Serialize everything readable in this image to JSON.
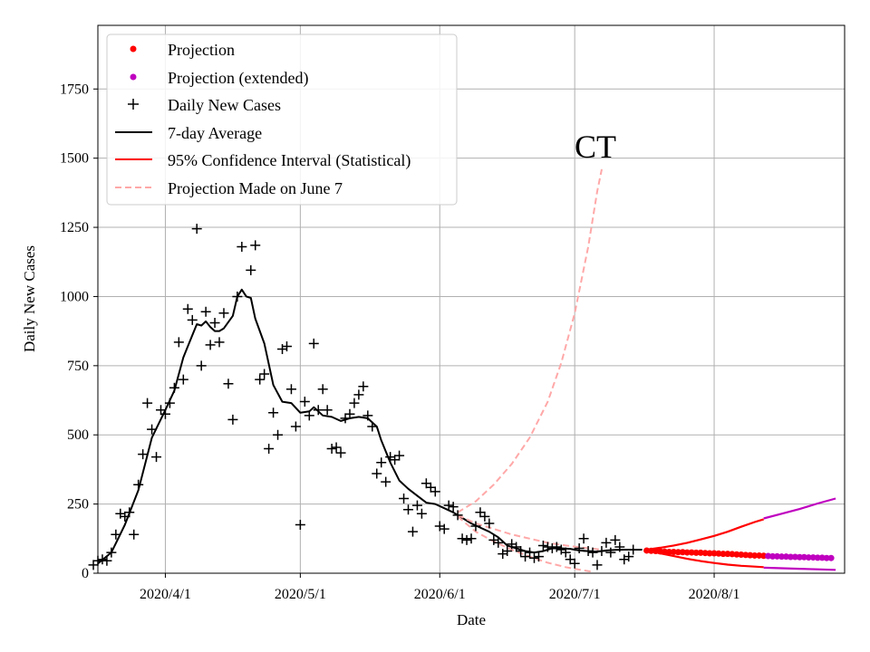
{
  "colors": {
    "observed": "#000000",
    "projection": "#ff0000",
    "projection_extended": "#bf00bf",
    "ci": "#ff0000",
    "ci_extended": "#bf00bf",
    "june7": "#ffa8a8",
    "grid": "#b0b0b0"
  },
  "chart_data": {
    "type": "line",
    "title": "",
    "annotation": "CT",
    "xlabel": "Date",
    "ylabel": "Daily New Cases",
    "xlim": [
      0,
      166
    ],
    "ylim": [
      0,
      1980
    ],
    "grid": true,
    "legend_position": "top-left",
    "x_ticks": [
      {
        "day": 15,
        "label": "2020/4/1"
      },
      {
        "day": 45,
        "label": "2020/5/1"
      },
      {
        "day": 76,
        "label": "2020/6/1"
      },
      {
        "day": 106,
        "label": "2020/7/1"
      },
      {
        "day": 137,
        "label": "2020/8/1"
      }
    ],
    "y_ticks": [
      0,
      250,
      500,
      750,
      1000,
      1250,
      1500,
      1750
    ],
    "legend": [
      {
        "key": "projection",
        "label": "Projection"
      },
      {
        "key": "projection_extended",
        "label": "Projection (extended)"
      },
      {
        "key": "daily",
        "label": "Daily New Cases"
      },
      {
        "key": "avg",
        "label": "7-day Average"
      },
      {
        "key": "ci",
        "label": "95% Confidence Interval (Statistical)"
      },
      {
        "key": "june7",
        "label": "Projection Made on June 7"
      }
    ],
    "series": [
      {
        "name": "Daily New Cases",
        "kind": "scatter",
        "marker": "plus",
        "points": [
          [
            -1,
            30
          ],
          [
            0,
            45
          ],
          [
            1,
            50
          ],
          [
            2,
            45
          ],
          [
            3,
            75
          ],
          [
            4,
            140
          ],
          [
            5,
            215
          ],
          [
            6,
            205
          ],
          [
            7,
            220
          ],
          [
            8,
            140
          ],
          [
            9,
            320
          ],
          [
            10,
            430
          ],
          [
            11,
            615
          ],
          [
            12,
            520
          ],
          [
            13,
            420
          ],
          [
            14,
            590
          ],
          [
            15,
            575
          ],
          [
            16,
            615
          ],
          [
            17,
            670
          ],
          [
            18,
            835
          ],
          [
            19,
            700
          ],
          [
            20,
            955
          ],
          [
            21,
            915
          ],
          [
            22,
            1245
          ],
          [
            23,
            750
          ],
          [
            24,
            945
          ],
          [
            25,
            825
          ],
          [
            26,
            905
          ],
          [
            27,
            835
          ],
          [
            28,
            940
          ],
          [
            29,
            685
          ],
          [
            30,
            555
          ],
          [
            31,
            1000
          ],
          [
            32,
            1180
          ],
          [
            34,
            1095
          ],
          [
            35,
            1185
          ],
          [
            36,
            700
          ],
          [
            37,
            720
          ],
          [
            38,
            450
          ],
          [
            39,
            580
          ],
          [
            40,
            500
          ],
          [
            41,
            810
          ],
          [
            42,
            820
          ],
          [
            43,
            665
          ],
          [
            44,
            530
          ],
          [
            45,
            175
          ],
          [
            46,
            620
          ],
          [
            47,
            570
          ],
          [
            48,
            830
          ],
          [
            49,
            590
          ],
          [
            50,
            665
          ],
          [
            51,
            590
          ],
          [
            52,
            450
          ],
          [
            53,
            455
          ],
          [
            54,
            435
          ],
          [
            55,
            560
          ],
          [
            56,
            575
          ],
          [
            57,
            615
          ],
          [
            58,
            645
          ],
          [
            59,
            675
          ],
          [
            60,
            570
          ],
          [
            61,
            530
          ],
          [
            62,
            360
          ],
          [
            63,
            400
          ],
          [
            64,
            330
          ],
          [
            65,
            420
          ],
          [
            66,
            410
          ],
          [
            67,
            425
          ],
          [
            68,
            270
          ],
          [
            69,
            230
          ],
          [
            70,
            150
          ],
          [
            71,
            245
          ],
          [
            72,
            215
          ],
          [
            73,
            325
          ],
          [
            74,
            310
          ],
          [
            75,
            295
          ],
          [
            76,
            170
          ],
          [
            77,
            160
          ],
          [
            78,
            245
          ],
          [
            79,
            240
          ],
          [
            80,
            210
          ],
          [
            81,
            125
          ],
          [
            82,
            120
          ],
          [
            83,
            125
          ],
          [
            84,
            170
          ],
          [
            85,
            220
          ],
          [
            86,
            205
          ],
          [
            87,
            180
          ],
          [
            88,
            120
          ],
          [
            89,
            110
          ],
          [
            90,
            70
          ],
          [
            91,
            80
          ],
          [
            92,
            105
          ],
          [
            93,
            95
          ],
          [
            94,
            80
          ],
          [
            95,
            60
          ],
          [
            96,
            75
          ],
          [
            97,
            55
          ],
          [
            98,
            60
          ],
          [
            99,
            100
          ],
          [
            100,
            95
          ],
          [
            101,
            90
          ],
          [
            102,
            95
          ],
          [
            103,
            85
          ],
          [
            104,
            75
          ],
          [
            105,
            50
          ],
          [
            106,
            35
          ],
          [
            107,
            90
          ],
          [
            108,
            125
          ],
          [
            109,
            80
          ],
          [
            110,
            75
          ],
          [
            111,
            30
          ],
          [
            112,
            80
          ],
          [
            113,
            110
          ],
          [
            114,
            75
          ],
          [
            115,
            120
          ],
          [
            116,
            95
          ],
          [
            117,
            50
          ],
          [
            118,
            60
          ],
          [
            119,
            85
          ]
        ]
      },
      {
        "name": "7-day Average",
        "kind": "line",
        "points": [
          [
            0,
            35
          ],
          [
            3,
            75
          ],
          [
            6,
            175
          ],
          [
            9,
            300
          ],
          [
            12,
            490
          ],
          [
            15,
            590
          ],
          [
            17,
            660
          ],
          [
            19,
            780
          ],
          [
            21,
            860
          ],
          [
            22,
            900
          ],
          [
            23,
            895
          ],
          [
            24,
            910
          ],
          [
            25,
            890
          ],
          [
            26,
            875
          ],
          [
            27,
            875
          ],
          [
            28,
            885
          ],
          [
            30,
            930
          ],
          [
            31,
            1000
          ],
          [
            32,
            1025
          ],
          [
            33,
            1000
          ],
          [
            34,
            995
          ],
          [
            35,
            920
          ],
          [
            37,
            830
          ],
          [
            39,
            680
          ],
          [
            41,
            620
          ],
          [
            43,
            615
          ],
          [
            45,
            580
          ],
          [
            47,
            585
          ],
          [
            48,
            600
          ],
          [
            50,
            570
          ],
          [
            52,
            565
          ],
          [
            54,
            550
          ],
          [
            56,
            560
          ],
          [
            58,
            565
          ],
          [
            60,
            560
          ],
          [
            62,
            530
          ],
          [
            63,
            480
          ],
          [
            65,
            400
          ],
          [
            67,
            335
          ],
          [
            69,
            305
          ],
          [
            71,
            280
          ],
          [
            73,
            255
          ],
          [
            75,
            250
          ],
          [
            77,
            235
          ],
          [
            79,
            220
          ],
          [
            81,
            200
          ],
          [
            83,
            180
          ],
          [
            85,
            165
          ],
          [
            87,
            150
          ],
          [
            89,
            130
          ],
          [
            91,
            100
          ],
          [
            93,
            90
          ],
          [
            95,
            80
          ],
          [
            97,
            75
          ],
          [
            99,
            80
          ],
          [
            101,
            90
          ],
          [
            103,
            90
          ],
          [
            105,
            88
          ],
          [
            107,
            82
          ],
          [
            109,
            80
          ],
          [
            111,
            78
          ],
          [
            113,
            82
          ],
          [
            115,
            84
          ],
          [
            117,
            85
          ],
          [
            119,
            85
          ],
          [
            121,
            85
          ]
        ]
      },
      {
        "name": "Projection",
        "kind": "scatter",
        "marker": "dot",
        "points": [
          [
            122,
            82
          ],
          [
            123,
            81
          ],
          [
            124,
            80
          ],
          [
            125,
            79
          ],
          [
            126,
            78
          ],
          [
            127,
            77
          ],
          [
            128,
            77
          ],
          [
            129,
            76
          ],
          [
            130,
            76
          ],
          [
            131,
            75
          ],
          [
            132,
            75
          ],
          [
            133,
            74
          ],
          [
            134,
            74
          ],
          [
            135,
            73
          ],
          [
            136,
            72
          ],
          [
            137,
            72
          ],
          [
            138,
            71
          ],
          [
            139,
            70
          ],
          [
            140,
            70
          ],
          [
            141,
            69
          ],
          [
            142,
            68
          ],
          [
            143,
            67
          ],
          [
            144,
            66
          ],
          [
            145,
            65
          ],
          [
            146,
            64
          ],
          [
            147,
            64
          ],
          [
            148,
            63
          ]
        ]
      },
      {
        "name": "Projection (extended)",
        "kind": "scatter",
        "marker": "dot",
        "points": [
          [
            149,
            62
          ],
          [
            150,
            61
          ],
          [
            151,
            61
          ],
          [
            152,
            60
          ],
          [
            153,
            60
          ],
          [
            154,
            59
          ],
          [
            155,
            59
          ],
          [
            156,
            58
          ],
          [
            157,
            58
          ],
          [
            158,
            57
          ],
          [
            159,
            57
          ],
          [
            160,
            56
          ],
          [
            161,
            56
          ],
          [
            162,
            55
          ],
          [
            163,
            55
          ]
        ]
      },
      {
        "name": "95% CI upper",
        "kind": "line",
        "points": [
          [
            122,
            85
          ],
          [
            125,
            92
          ],
          [
            128,
            100
          ],
          [
            131,
            110
          ],
          [
            134,
            122
          ],
          [
            137,
            135
          ],
          [
            140,
            150
          ],
          [
            143,
            168
          ],
          [
            146,
            185
          ],
          [
            148,
            195
          ]
        ]
      },
      {
        "name": "95% CI lower",
        "kind": "line",
        "points": [
          [
            122,
            82
          ],
          [
            125,
            72
          ],
          [
            128,
            62
          ],
          [
            131,
            52
          ],
          [
            134,
            44
          ],
          [
            137,
            37
          ],
          [
            140,
            31
          ],
          [
            143,
            27
          ],
          [
            146,
            24
          ],
          [
            148,
            22
          ]
        ]
      },
      {
        "name": "95% CI upper (extended)",
        "kind": "line",
        "points": [
          [
            148,
            198
          ],
          [
            152,
            215
          ],
          [
            156,
            232
          ],
          [
            160,
            252
          ],
          [
            164,
            270
          ]
        ]
      },
      {
        "name": "95% CI lower (extended)",
        "kind": "line",
        "points": [
          [
            148,
            20
          ],
          [
            152,
            18
          ],
          [
            156,
            16
          ],
          [
            160,
            14
          ],
          [
            164,
            12
          ]
        ]
      },
      {
        "name": "Projection Made on June 7 (upper)",
        "kind": "line",
        "points": [
          [
            80,
            220
          ],
          [
            84,
            260
          ],
          [
            88,
            320
          ],
          [
            92,
            395
          ],
          [
            96,
            490
          ],
          [
            100,
            620
          ],
          [
            103,
            760
          ],
          [
            106,
            940
          ],
          [
            109,
            1180
          ],
          [
            111,
            1380
          ],
          [
            112,
            1460
          ]
        ]
      },
      {
        "name": "Projection Made on June 7 (center)",
        "kind": "line",
        "points": [
          [
            80,
            210
          ],
          [
            84,
            180
          ],
          [
            88,
            160
          ],
          [
            92,
            140
          ],
          [
            96,
            125
          ],
          [
            100,
            110
          ],
          [
            104,
            100
          ],
          [
            108,
            92
          ],
          [
            112,
            85
          ]
        ]
      },
      {
        "name": "Projection Made on June 7 (lower)",
        "kind": "line",
        "points": [
          [
            80,
            205
          ],
          [
            84,
            150
          ],
          [
            88,
            115
          ],
          [
            92,
            85
          ],
          [
            96,
            60
          ],
          [
            100,
            38
          ],
          [
            104,
            22
          ],
          [
            108,
            10
          ],
          [
            110,
            5
          ]
        ]
      }
    ]
  }
}
